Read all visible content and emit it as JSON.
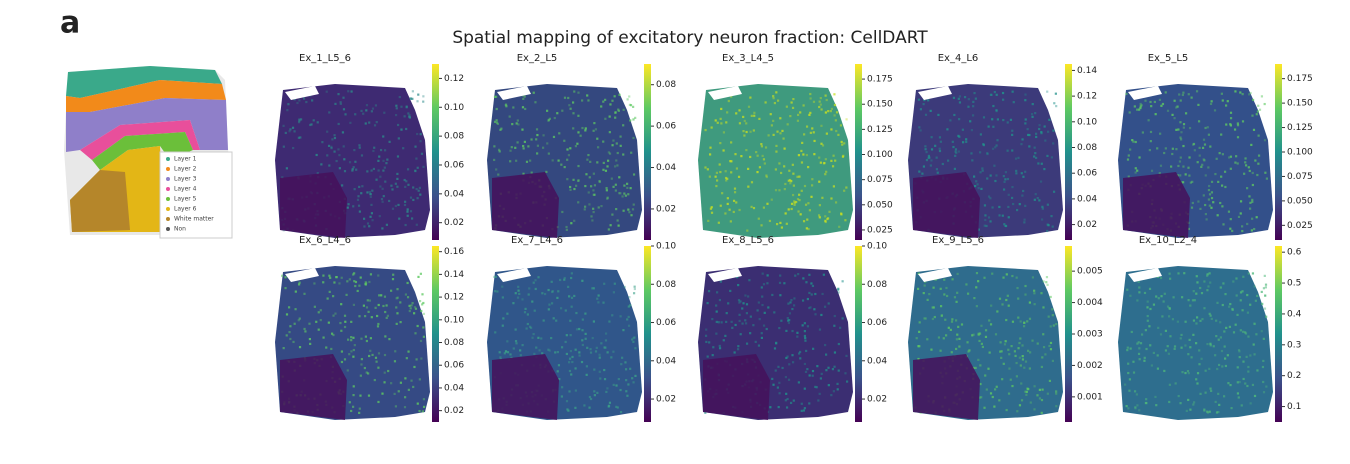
{
  "panel_label": "a",
  "title": "Spatial mapping of excitatory neuron fraction: CellDART",
  "reference": {
    "legend": [
      "Layer 1",
      "Layer 2",
      "Layer 3",
      "Layer 4",
      "Layer 5",
      "Layer 6",
      "White matter",
      "Non"
    ]
  },
  "panels": [
    {
      "name": "Ex_1_L5_6",
      "clim": [
        0.008,
        0.13
      ],
      "ticks": [
        0.02,
        0.04,
        0.06,
        0.08,
        {
          "value": 0.1,
          "label": "0.10"
        },
        0.12
      ]
    },
    {
      "name": "Ex_2_L5",
      "clim": [
        0.005,
        0.09
      ],
      "ticks": [
        0.02,
        0.04,
        0.06,
        0.08
      ]
    },
    {
      "name": "Ex_3_L4_5",
      "clim": [
        0.015,
        0.19
      ],
      "ticks": [
        0.025,
        {
          "value": 0.05,
          "label": "0.050"
        },
        0.075,
        {
          "value": 0.1,
          "label": "0.100"
        },
        0.125,
        {
          "value": 0.15,
          "label": "0.150"
        },
        0.175
      ]
    },
    {
      "name": "Ex_4_L6",
      "clim": [
        0.008,
        0.145
      ],
      "ticks": [
        0.02,
        0.04,
        0.06,
        0.08,
        {
          "value": 0.1,
          "label": "0.10"
        },
        0.12,
        0.14
      ]
    },
    {
      "name": "Ex_5_L5",
      "clim": [
        0.01,
        0.19
      ],
      "ticks": [
        0.025,
        {
          "value": 0.05,
          "label": "0.050"
        },
        0.075,
        {
          "value": 0.1,
          "label": "0.100"
        },
        0.125,
        {
          "value": 0.15,
          "label": "0.150"
        },
        0.175
      ]
    },
    {
      "name": "Ex_6_L4_6",
      "clim": [
        0.01,
        0.165
      ],
      "ticks": [
        0.02,
        0.04,
        0.06,
        0.08,
        {
          "value": 0.1,
          "label": "0.10"
        },
        0.12,
        0.14,
        0.16
      ]
    },
    {
      "name": "Ex_7_L4_6",
      "clim": [
        0.008,
        0.1
      ],
      "ticks": [
        0.02,
        0.04,
        0.06,
        0.08,
        {
          "value": 0.1,
          "label": "0.10"
        }
      ]
    },
    {
      "name": "Ex_8_L5_6",
      "clim": [
        0.008,
        0.1
      ],
      "ticks": [
        0.02,
        0.04,
        0.06,
        0.08,
        {
          "value": 0.1,
          "label": "0.10"
        }
      ]
    },
    {
      "name": "Ex_9_L5_6",
      "clim": [
        0.0002,
        0.0058
      ],
      "ticks": [
        0.001,
        0.002,
        0.003,
        0.004,
        0.005
      ]
    },
    {
      "name": "Ex_10_L2_4",
      "clim": [
        0.05,
        0.62
      ],
      "ticks": [
        0.1,
        0.2,
        0.3,
        0.4,
        0.5,
        0.6
      ]
    }
  ]
}
